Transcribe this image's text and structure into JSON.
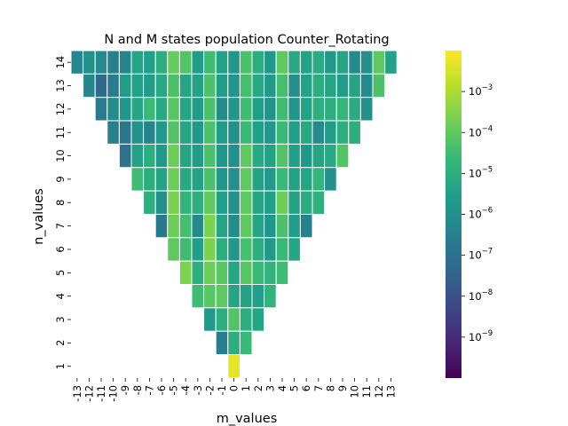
{
  "chart_data": {
    "type": "heatmap",
    "title": "N and M states population Counter_Rotating",
    "xlabel": "m_values",
    "ylabel": "n_values",
    "x": [
      -13,
      -12,
      -11,
      -10,
      -9,
      -8,
      -7,
      -6,
      -5,
      -4,
      -3,
      -2,
      -1,
      0,
      1,
      2,
      3,
      4,
      5,
      6,
      7,
      8,
      9,
      10,
      11,
      12,
      13
    ],
    "x_tick_labels": [
      "-13",
      "-12",
      "-11",
      "-10",
      "-9",
      "-8",
      "-7",
      "-6",
      "-5",
      "-4",
      "-3",
      "-2",
      "-1",
      "0",
      "1",
      "2",
      "3",
      "4",
      "5",
      "6",
      "7",
      "8",
      "9",
      "10",
      "11",
      "12",
      "13"
    ],
    "y": [
      14,
      13,
      12,
      11,
      10,
      9,
      8,
      7,
      6,
      5,
      4,
      3,
      2,
      1
    ],
    "y_tick_labels": [
      "14",
      "13",
      "12",
      "11",
      "10",
      "9",
      "8",
      "7",
      "6",
      "5",
      "4",
      "3",
      "2",
      "1"
    ],
    "scale": "log",
    "colormap": "viridis",
    "colorbar_range": [
      1e-10,
      0.01
    ],
    "colorbar_ticks": [
      {
        "exp": -9,
        "label": "10",
        "sup": "−9"
      },
      {
        "exp": -8,
        "label": "10",
        "sup": "−8"
      },
      {
        "exp": -7,
        "label": "10",
        "sup": "−7"
      },
      {
        "exp": -6,
        "label": "10",
        "sup": "−6"
      },
      {
        "exp": -5,
        "label": "10",
        "sup": "−5"
      },
      {
        "exp": -4,
        "label": "10",
        "sup": "−4"
      },
      {
        "exp": -3,
        "label": "10",
        "sup": "−3"
      }
    ],
    "log10_values": [
      [
        -6.3,
        -6.0,
        -6.2,
        -6.5,
        -6.3,
        -5.3,
        -5.5,
        -5.0,
        -3.9,
        -4.2,
        -5.6,
        -4.5,
        -5.4,
        -5.8,
        -4.3,
        -5.0,
        -5.8,
        -4.0,
        -5.2,
        -5.4,
        -5.1,
        -5.7,
        -5.3,
        -6.2,
        -6.0,
        -4.0,
        -5.4
      ],
      [
        null,
        -6.3,
        -7.3,
        -6.7,
        -5.6,
        -5.4,
        -5.6,
        -5.2,
        -4.3,
        -5.3,
        -5.4,
        -4.3,
        -5.6,
        -5.8,
        -4.4,
        -5.2,
        -5.7,
        -4.4,
        -6.0,
        -5.4,
        -5.0,
        -5.3,
        -5.6,
        -5.3,
        -6.2,
        -4.3,
        null
      ],
      [
        null,
        null,
        -6.7,
        -6.1,
        -5.8,
        -5.3,
        -4.6,
        -5.2,
        -4.1,
        -5.3,
        -5.6,
        -4.3,
        -6.1,
        -5.8,
        -4.5,
        -5.5,
        -5.9,
        -4.5,
        -5.8,
        -5.4,
        -5.0,
        -5.0,
        -4.7,
        -5.1,
        -6.0,
        null,
        null
      ],
      [
        null,
        null,
        null,
        -6.4,
        -6.8,
        -5.9,
        -6.4,
        -5.7,
        -4.2,
        -5.3,
        -5.7,
        -4.3,
        -5.6,
        -6.0,
        -4.6,
        -5.5,
        -5.8,
        -4.6,
        -5.5,
        -5.2,
        -6.2,
        -5.6,
        -5.0,
        -5.0,
        null,
        null,
        null
      ],
      [
        null,
        null,
        null,
        null,
        -7.0,
        -5.4,
        -5.0,
        -5.7,
        -3.8,
        -5.3,
        -5.6,
        -4.3,
        -5.8,
        -6.0,
        -4.0,
        -5.2,
        -5.4,
        -4.2,
        -5.5,
        -5.7,
        -5.3,
        -5.2,
        -4.2,
        null,
        null,
        null,
        null
      ],
      [
        null,
        null,
        null,
        null,
        null,
        -4.5,
        -5.0,
        -5.4,
        -3.8,
        -5.2,
        -5.4,
        -4.3,
        -5.8,
        -6.0,
        -4.0,
        -5.4,
        -5.7,
        -4.6,
        -5.4,
        -5.3,
        -4.7,
        -6.0,
        null,
        null,
        null,
        null,
        null
      ],
      [
        null,
        null,
        null,
        null,
        null,
        null,
        -5.0,
        -6.0,
        -3.6,
        -4.8,
        -5.0,
        -4.0,
        -5.5,
        -6.0,
        -4.0,
        -5.3,
        -5.5,
        -3.8,
        -5.4,
        -5.1,
        -4.9,
        null,
        null,
        null,
        null,
        null,
        null
      ],
      [
        null,
        null,
        null,
        null,
        null,
        null,
        null,
        -6.8,
        -3.8,
        -4.4,
        -6.2,
        -3.6,
        -5.3,
        -6.1,
        -4.0,
        -5.3,
        -5.8,
        -4.3,
        -5.6,
        -6.5,
        null,
        null,
        null,
        null,
        null,
        null,
        null
      ],
      [
        null,
        null,
        null,
        null,
        null,
        null,
        null,
        null,
        -4.0,
        -4.5,
        -5.5,
        -3.6,
        -5.0,
        -5.7,
        -4.4,
        -5.0,
        -5.7,
        -4.6,
        -5.3,
        null,
        null,
        null,
        null,
        null,
        null,
        null,
        null
      ],
      [
        null,
        null,
        null,
        null,
        null,
        null,
        null,
        null,
        null,
        -3.6,
        -5.0,
        -3.8,
        -4.1,
        -5.3,
        -4.1,
        -4.6,
        -4.8,
        -4.5,
        null,
        null,
        null,
        null,
        null,
        null,
        null,
        null,
        null
      ],
      [
        null,
        null,
        null,
        null,
        null,
        null,
        null,
        null,
        null,
        null,
        -4.5,
        -4.1,
        -4.0,
        -5.3,
        -5.4,
        -5.5,
        -4.8,
        null,
        null,
        null,
        null,
        null,
        null,
        null,
        null,
        null,
        null
      ],
      [
        null,
        null,
        null,
        null,
        null,
        null,
        null,
        null,
        null,
        null,
        null,
        -5.7,
        -5.0,
        -4.2,
        -5.0,
        -5.3,
        null,
        null,
        null,
        null,
        null,
        null,
        null,
        null,
        null,
        null,
        null
      ],
      [
        null,
        null,
        null,
        null,
        null,
        null,
        null,
        null,
        null,
        null,
        null,
        null,
        -6.6,
        -5.0,
        -4.6,
        null,
        null,
        null,
        null,
        null,
        null,
        null,
        null,
        null,
        null,
        null,
        null
      ],
      [
        null,
        null,
        null,
        null,
        null,
        null,
        null,
        null,
        null,
        null,
        null,
        null,
        null,
        -2.3,
        null,
        null,
        null,
        null,
        null,
        null,
        null,
        null,
        null,
        null,
        null,
        null,
        null
      ]
    ]
  }
}
